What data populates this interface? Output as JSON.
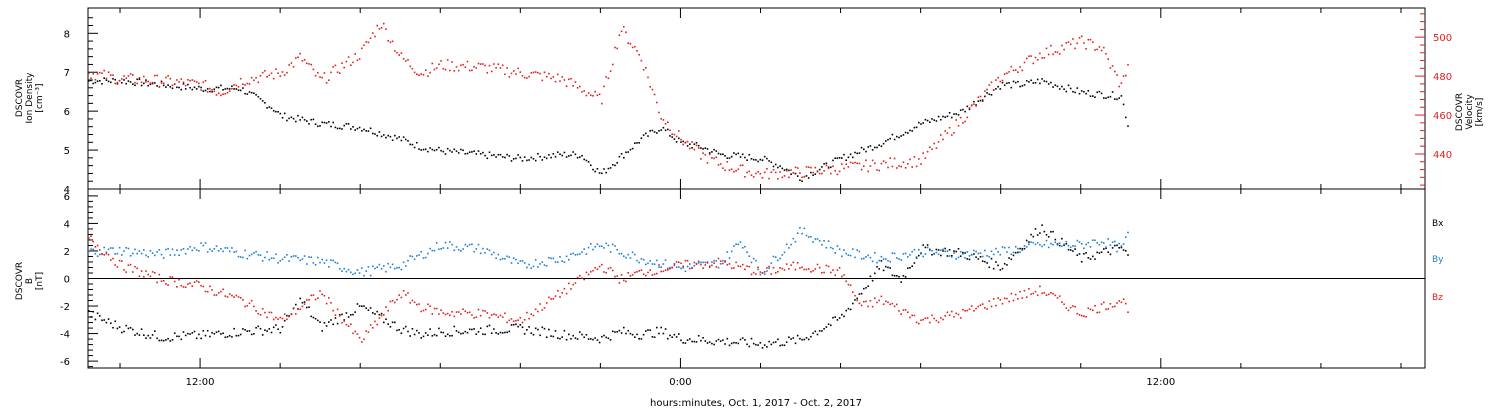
{
  "footer": {
    "time_label": "hours:minutes, Oct.  1, 2017 - Oct.  2, 2017"
  },
  "x_axis": {
    "tick_labels": [
      "12:00",
      "0:00",
      "12:00"
    ],
    "tick_hours": [
      12,
      24,
      36
    ],
    "range_hours": [
      9.2,
      42.6
    ]
  },
  "colors": {
    "black": "#000000",
    "red": "#e0201c",
    "blue": "#1a7fd4"
  },
  "panels": {
    "top": {
      "left_label": [
        "DSCOVR",
        "Ion Density",
        "[cm⁻³]"
      ],
      "right_label": [
        "DSCOVR",
        "Velocity",
        "[km/s]"
      ]
    },
    "bottom": {
      "left_label": [
        "DSCOVR",
        "B",
        "[nT]"
      ],
      "legend": [
        "Bx",
        "By",
        "Bz"
      ]
    }
  },
  "chart_data": [
    {
      "type": "scatter",
      "title": "",
      "xlabel": "hours:minutes, Oct.  1, 2017 - Oct.  2, 2017",
      "ylabel": "DSCOVR Ion Density [cm⁻³]",
      "y2label": "DSCOVR Velocity [km/s]",
      "ylim": [
        4,
        8.65
      ],
      "y_ticks": [
        4,
        5,
        6,
        7,
        8
      ],
      "y2lim": [
        422,
        515
      ],
      "y2_ticks": [
        440,
        460,
        480,
        500
      ],
      "series": [
        {
          "axis": "left",
          "color": "#000000",
          "x": [
            9.2,
            10.0,
            11.0,
            12.0,
            13.0,
            13.8,
            14.0,
            14.5,
            15.0,
            16.0,
            17.0,
            17.5,
            18.0,
            19.0,
            20.0,
            21.0,
            21.5,
            22.0,
            23.0,
            23.5,
            24.0,
            24.5,
            25.0,
            26.0,
            26.5,
            27.0,
            28.0,
            29.0,
            30.0,
            31.0,
            32.0,
            32.5,
            33.0,
            34.0,
            35.0,
            35.2
          ],
          "values": [
            6.8,
            6.8,
            6.7,
            6.6,
            6.6,
            6.1,
            5.9,
            5.8,
            5.7,
            5.6,
            5.3,
            5.1,
            5.0,
            4.9,
            4.8,
            4.9,
            4.9,
            4.4,
            5.3,
            5.6,
            5.2,
            5.1,
            4.9,
            4.8,
            4.6,
            4.3,
            4.8,
            5.2,
            5.7,
            6.0,
            6.7,
            6.7,
            6.8,
            6.5,
            6.4,
            5.5
          ]
        },
        {
          "axis": "right",
          "color": "#e0201c",
          "x": [
            9.2,
            10.0,
            11.0,
            12.0,
            12.5,
            13.0,
            14.0,
            14.5,
            15.0,
            16.0,
            16.5,
            17.0,
            17.5,
            18.0,
            19.0,
            20.0,
            21.0,
            21.5,
            22.0,
            22.3,
            22.5,
            23.0,
            23.5,
            24.0,
            24.5,
            25.0,
            25.5,
            26.0,
            27.0,
            28.0,
            29.0,
            30.0,
            31.0,
            32.0,
            33.0,
            34.0,
            34.5,
            35.0,
            35.2
          ],
          "values": [
            482,
            479,
            478,
            476,
            472,
            478,
            482,
            490,
            478,
            492,
            508,
            490,
            482,
            486,
            485,
            482,
            479,
            474,
            468,
            490,
            505,
            490,
            460,
            448,
            440,
            435,
            432,
            430,
            431,
            433,
            435,
            437,
            458,
            480,
            492,
            498,
            495,
            475,
            490
          ]
        }
      ]
    },
    {
      "type": "scatter",
      "title": "",
      "xlabel": "hours:minutes, Oct.  1, 2017 - Oct.  2, 2017",
      "ylabel": "DSCOVR B [nT]",
      "ylim": [
        -6.5,
        6.5
      ],
      "y_ticks": [
        -6,
        -4,
        -2,
        0,
        2,
        4,
        6
      ],
      "zero_line": true,
      "series": [
        {
          "name": "Bx",
          "color": "#000000",
          "x": [
            9.2,
            10.0,
            11.0,
            12.0,
            13.0,
            14.0,
            14.5,
            15.0,
            16.0,
            17.0,
            17.5,
            18.0,
            19.0,
            20.0,
            21.0,
            22.0,
            22.5,
            23.0,
            23.5,
            24.0,
            25.0,
            26.0,
            27.0,
            28.0,
            29.0,
            29.5,
            30.0,
            31.0,
            32.0,
            33.0,
            34.0,
            35.0,
            35.2
          ],
          "values": [
            -2.5,
            -3.5,
            -4.2,
            -4.1,
            -3.8,
            -3.6,
            -1.5,
            -3.5,
            -2.0,
            -3.6,
            -4.0,
            -3.8,
            -3.7,
            -3.6,
            -4.0,
            -4.3,
            -3.8,
            -4.0,
            -3.8,
            -4.3,
            -4.5,
            -4.7,
            -4.4,
            -2.8,
            1.0,
            0.0,
            2.2,
            1.9,
            0.9,
            3.8,
            1.5,
            2.3,
            1.5
          ]
        },
        {
          "name": "By",
          "color": "#1a7fd4",
          "x": [
            9.2,
            10.0,
            11.0,
            12.0,
            13.0,
            14.0,
            15.0,
            16.0,
            17.0,
            18.0,
            19.0,
            20.0,
            21.0,
            22.0,
            23.0,
            24.0,
            25.0,
            25.5,
            26.0,
            27.0,
            28.0,
            29.0,
            30.0,
            31.0,
            32.0,
            33.0,
            34.0,
            34.5,
            35.0,
            35.2
          ],
          "values": [
            2.0,
            2.1,
            1.8,
            2.4,
            1.9,
            1.5,
            1.3,
            0.5,
            1.0,
            2.5,
            2.2,
            1.0,
            1.5,
            2.5,
            1.5,
            0.8,
            1.2,
            2.8,
            0.4,
            3.5,
            2.0,
            1.5,
            2.0,
            1.8,
            2.0,
            2.5,
            2.5,
            2.8,
            2.2,
            3.4
          ]
        },
        {
          "name": "Bz",
          "color": "#e0201c",
          "x": [
            9.2,
            10.0,
            11.0,
            12.0,
            13.0,
            14.0,
            15.0,
            16.0,
            17.0,
            17.5,
            18.0,
            19.0,
            20.0,
            21.0,
            22.0,
            22.5,
            23.0,
            24.0,
            25.0,
            26.0,
            27.0,
            28.0,
            28.5,
            29.0,
            30.0,
            31.0,
            32.0,
            33.0,
            34.0,
            35.0,
            35.2
          ],
          "values": [
            3.0,
            1.0,
            0.0,
            -0.5,
            -1.5,
            -3.0,
            -1.0,
            -4.5,
            -1.0,
            -2.0,
            -2.4,
            -2.5,
            -3.0,
            -1.0,
            1.0,
            0.0,
            0.5,
            1.0,
            1.2,
            0.5,
            1.0,
            0.5,
            -2.0,
            -1.5,
            -3.0,
            -2.5,
            -1.5,
            -0.8,
            -2.5,
            -1.5,
            -2.2
          ]
        }
      ]
    }
  ]
}
